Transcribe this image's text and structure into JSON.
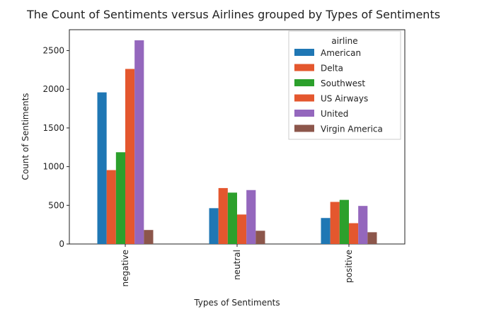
{
  "chart_data": {
    "type": "bar",
    "title": "The Count of Sentiments versus Airlines grouped by Types of Sentiments",
    "xlabel": "Types of Sentiments",
    "ylabel": "Count of Sentiments",
    "categories": [
      "negative",
      "neutral",
      "positive"
    ],
    "ylim": [
      0,
      2770
    ],
    "yticks": [
      0,
      500,
      1000,
      1500,
      2000,
      2500
    ],
    "legend_title": "airline",
    "legend_position": "top-right",
    "grid": false,
    "series": [
      {
        "name": "American",
        "color": "#1f77b4",
        "values": [
          1960,
          463,
          336
        ]
      },
      {
        "name": "Delta",
        "color": "#e4572e",
        "values": [
          955,
          723,
          544
        ]
      },
      {
        "name": "Southwest",
        "color": "#2ca02c",
        "values": [
          1186,
          664,
          570
        ]
      },
      {
        "name": "US Airways",
        "color": "#e4572e",
        "values": [
          2263,
          381,
          269
        ]
      },
      {
        "name": "United",
        "color": "#9467bd",
        "values": [
          2633,
          697,
          492
        ]
      },
      {
        "name": "Virgin America",
        "color": "#8c564b",
        "values": [
          181,
          171,
          152
        ]
      }
    ]
  }
}
